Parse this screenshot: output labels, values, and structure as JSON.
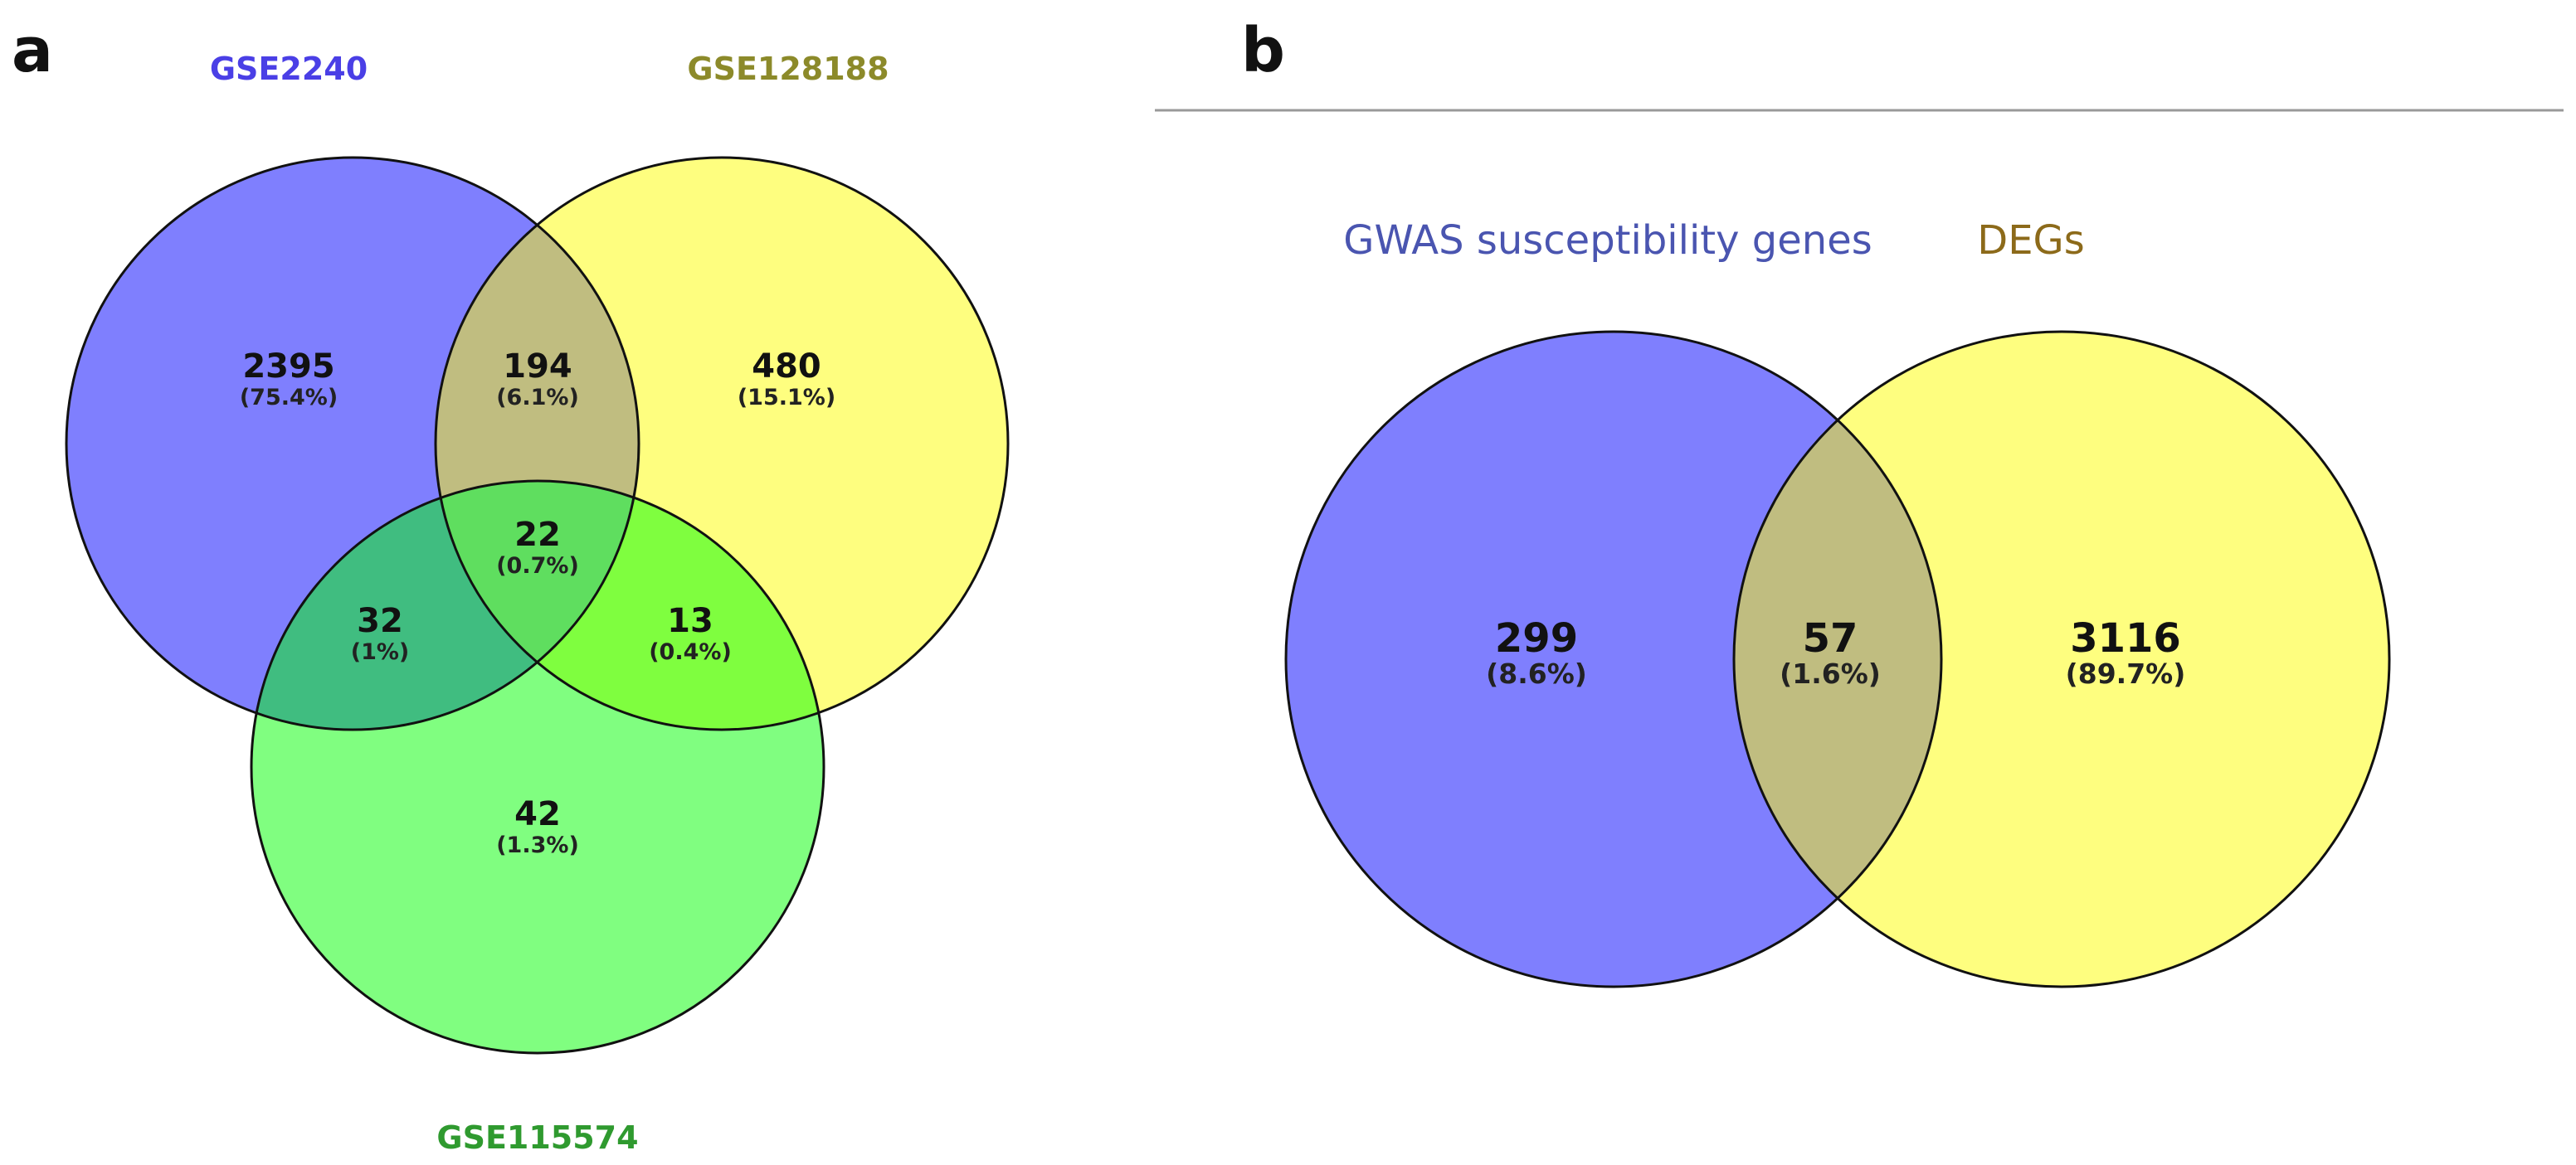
{
  "colors": {
    "blue": "#7f7ffe",
    "yellow": "#fefe7f",
    "green": "#80fe80",
    "blue_yellow": "#c0bd80",
    "blue_green": "#40bd80",
    "yellow_green": "#7ffe3f",
    "all_three": "#5fde5f",
    "label_blue": "#4a3fe6",
    "label_olive": "#8c8a2a",
    "label_green": "#2f9a2f",
    "label_b_blue": "#4a55b0",
    "label_b_gold": "#8c6a1a",
    "divider": "#999999"
  },
  "panel_a": {
    "letter": "a",
    "sets": {
      "A": "GSE2240",
      "B": "GSE128188",
      "C": "GSE115574"
    },
    "regions": {
      "a_only": {
        "count": "2395",
        "pct": "(75.4%)"
      },
      "ab": {
        "count": "194",
        "pct": "(6.1%)"
      },
      "b_only": {
        "count": "480",
        "pct": "(15.1%)"
      },
      "abc": {
        "count": "22",
        "pct": "(0.7%)"
      },
      "ac": {
        "count": "32",
        "pct": "(1%)"
      },
      "bc": {
        "count": "13",
        "pct": "(0.4%)"
      },
      "c_only": {
        "count": "42",
        "pct": "(1.3%)"
      }
    }
  },
  "panel_b": {
    "letter": "b",
    "sets": {
      "A": "GWAS susceptibility genes",
      "B": "DEGs"
    },
    "regions": {
      "a_only": {
        "count": "299",
        "pct": "(8.6%)"
      },
      "ab": {
        "count": "57",
        "pct": "(1.6%)"
      },
      "b_only": {
        "count": "3116",
        "pct": "(89.7%)"
      }
    }
  }
}
